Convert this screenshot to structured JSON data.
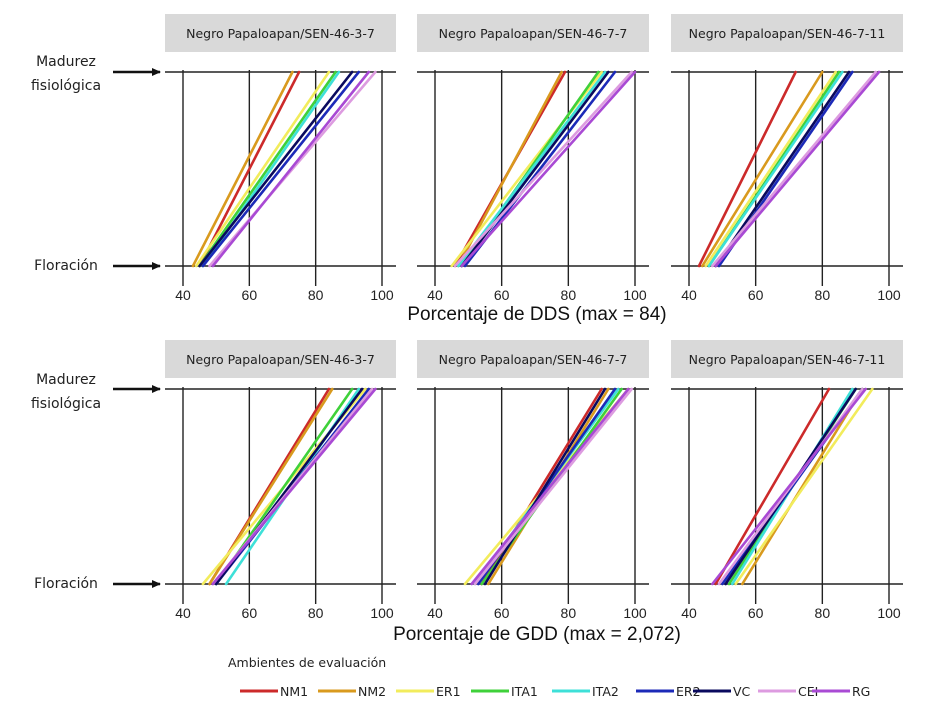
{
  "chart_data": {
    "type": "line",
    "stages": {
      "top": [
        "Madurez",
        "fisiológica"
      ],
      "bottom": "Floración"
    },
    "xlim": [
      40,
      100
    ],
    "xticks": [
      40,
      60,
      80,
      100
    ],
    "legend": {
      "title": "Ambientes de evaluación",
      "placement": "bottom",
      "series": [
        {
          "name": "NM1",
          "color": "#cc2a2a"
        },
        {
          "name": "NM2",
          "color": "#d99a1e"
        },
        {
          "name": "ER1",
          "color": "#f2ec5c"
        },
        {
          "name": "ITA1",
          "color": "#3fd13a"
        },
        {
          "name": "ITA2",
          "color": "#3ee0d8"
        },
        {
          "name": "ER2",
          "color": "#1c2ab8"
        },
        {
          "name": "VC",
          "color": "#0a0a5e"
        },
        {
          "name": "CEI",
          "color": "#dd9be0"
        },
        {
          "name": "RG",
          "color": "#a94ad4"
        }
      ]
    },
    "rows": [
      {
        "xlabel": "Porcentaje de DDS (max = 84)",
        "panels": [
          {
            "title": "Negro Papaloapan/SEN-46-3-7",
            "lines": [
              {
                "series": "NM1",
                "x_start": 45,
                "x_end": 75
              },
              {
                "series": "NM2",
                "x_start": 43,
                "x_end": 73
              },
              {
                "series": "ER1",
                "x_start": 44,
                "x_end": 84
              },
              {
                "series": "ITA1",
                "x_start": 45,
                "x_end": 86
              },
              {
                "series": "ITA2",
                "x_start": 46,
                "x_end": 87
              },
              {
                "series": "ER2",
                "x_start": 46,
                "x_end": 93
              },
              {
                "series": "VC",
                "x_start": 45,
                "x_end": 91
              },
              {
                "series": "CEI",
                "x_start": 48,
                "x_end": 98
              },
              {
                "series": "RG",
                "x_start": 49,
                "x_end": 96
              }
            ]
          },
          {
            "title": "Negro Papaloapan/SEN-46-7-7",
            "lines": [
              {
                "series": "NM1",
                "x_start": 46,
                "x_end": 79
              },
              {
                "series": "NM2",
                "x_start": 47,
                "x_end": 78
              },
              {
                "series": "ER1",
                "x_start": 45,
                "x_end": 90
              },
              {
                "series": "ITA1",
                "x_start": 48,
                "x_end": 89
              },
              {
                "series": "ITA2",
                "x_start": 47,
                "x_end": 91
              },
              {
                "series": "ER2",
                "x_start": 49,
                "x_end": 94
              },
              {
                "series": "VC",
                "x_start": 48,
                "x_end": 92
              },
              {
                "series": "CEI",
                "x_start": 46,
                "x_end": 99
              },
              {
                "series": "RG",
                "x_start": 48,
                "x_end": 100
              }
            ]
          },
          {
            "title": "Negro Papaloapan/SEN-46-7-11",
            "lines": [
              {
                "series": "NM1",
                "x_start": 43,
                "x_end": 72
              },
              {
                "series": "NM2",
                "x_start": 44,
                "x_end": 80
              },
              {
                "series": "ER1",
                "x_start": 45,
                "x_end": 84
              },
              {
                "series": "ITA1",
                "x_start": 46,
                "x_end": 85
              },
              {
                "series": "ITA2",
                "x_start": 46,
                "x_end": 86
              },
              {
                "series": "ER2",
                "x_start": 49,
                "x_end": 89
              },
              {
                "series": "VC",
                "x_start": 48,
                "x_end": 88
              },
              {
                "series": "CEI",
                "x_start": 47,
                "x_end": 96
              },
              {
                "series": "RG",
                "x_start": 48,
                "x_end": 97
              }
            ]
          }
        ]
      },
      {
        "xlabel": "Porcentaje de GDD (max =  2,072)",
        "panels": [
          {
            "title": "Negro Papaloapan/SEN-46-3-7",
            "lines": [
              {
                "series": "NM1",
                "x_start": 48,
                "x_end": 84
              },
              {
                "series": "NM2",
                "x_start": 48,
                "x_end": 85
              },
              {
                "series": "ER1",
                "x_start": 46,
                "x_end": 95
              },
              {
                "series": "ITA1",
                "x_start": 50,
                "x_end": 91
              },
              {
                "series": "ITA2",
                "x_start": 53,
                "x_end": 93
              },
              {
                "series": "ER2",
                "x_start": 50,
                "x_end": 96
              },
              {
                "series": "VC",
                "x_start": 50,
                "x_end": 94
              },
              {
                "series": "CEI",
                "x_start": 49,
                "x_end": 97
              },
              {
                "series": "RG",
                "x_start": 49,
                "x_end": 98
              }
            ]
          },
          {
            "title": "Negro Papaloapan/SEN-46-7-7",
            "lines": [
              {
                "series": "NM1",
                "x_start": 54,
                "x_end": 90
              },
              {
                "series": "NM2",
                "x_start": 56,
                "x_end": 92
              },
              {
                "series": "ER1",
                "x_start": 49,
                "x_end": 98
              },
              {
                "series": "ITA1",
                "x_start": 54,
                "x_end": 96
              },
              {
                "series": "ITA2",
                "x_start": 52,
                "x_end": 95
              },
              {
                "series": "ER2",
                "x_start": 53,
                "x_end": 94
              },
              {
                "series": "VC",
                "x_start": 55,
                "x_end": 91
              },
              {
                "series": "CEI",
                "x_start": 52,
                "x_end": 99
              },
              {
                "series": "RG",
                "x_start": 51,
                "x_end": 98
              }
            ]
          },
          {
            "title": "Negro Papaloapan/SEN-46-7-11",
            "lines": [
              {
                "series": "NM1",
                "x_start": 48,
                "x_end": 82
              },
              {
                "series": "NM2",
                "x_start": 56,
                "x_end": 92
              },
              {
                "series": "ER1",
                "x_start": 54,
                "x_end": 95
              },
              {
                "series": "ITA1",
                "x_start": 52,
                "x_end": 90
              },
              {
                "series": "ITA2",
                "x_start": 53,
                "x_end": 89
              },
              {
                "series": "ER2",
                "x_start": 50,
                "x_end": 92
              },
              {
                "series": "VC",
                "x_start": 51,
                "x_end": 90
              },
              {
                "series": "CEI",
                "x_start": 49,
                "x_end": 92
              },
              {
                "series": "RG",
                "x_start": 47,
                "x_end": 93
              }
            ]
          }
        ]
      }
    ]
  }
}
